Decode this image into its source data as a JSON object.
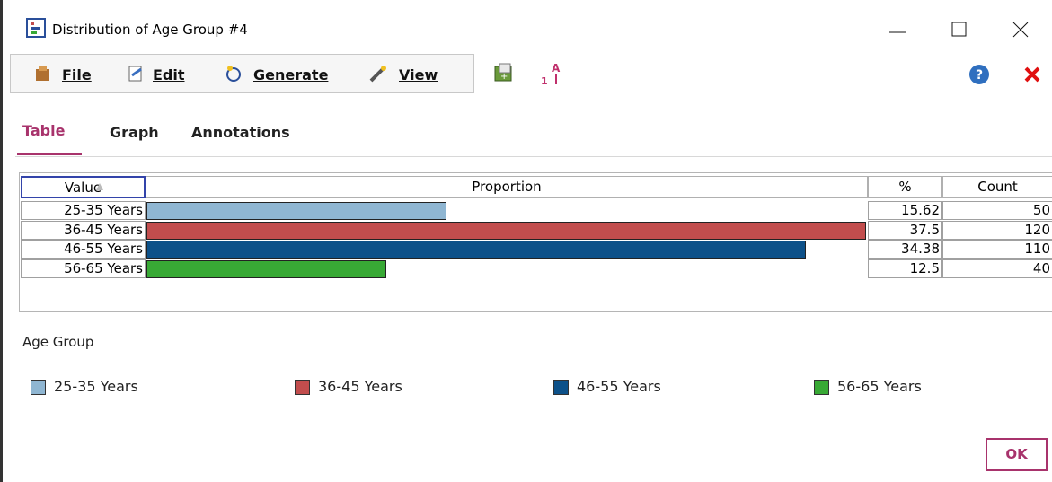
{
  "window": {
    "title": "Distribution of Age Group #4"
  },
  "menu": [
    "File",
    "Edit",
    "Generate",
    "View"
  ],
  "tabs": [
    "Table",
    "Graph",
    "Annotations"
  ],
  "table": {
    "columns": [
      "Value",
      "Proportion",
      "%",
      "Count"
    ],
    "rows": [
      {
        "value": "25-35 Years",
        "percent": 15.62,
        "count": 50,
        "color": "#8fb6d2"
      },
      {
        "value": "36-45 Years",
        "percent": 37.5,
        "count": 120,
        "color": "#c24d4d"
      },
      {
        "value": "46-55 Years",
        "percent": 34.38,
        "count": 110,
        "color": "#0d5189"
      },
      {
        "value": "56-65 Years",
        "percent": 12.5,
        "count": 40,
        "color": "#38a935"
      }
    ]
  },
  "legend": {
    "title": "Age Group"
  },
  "button": "OK"
}
